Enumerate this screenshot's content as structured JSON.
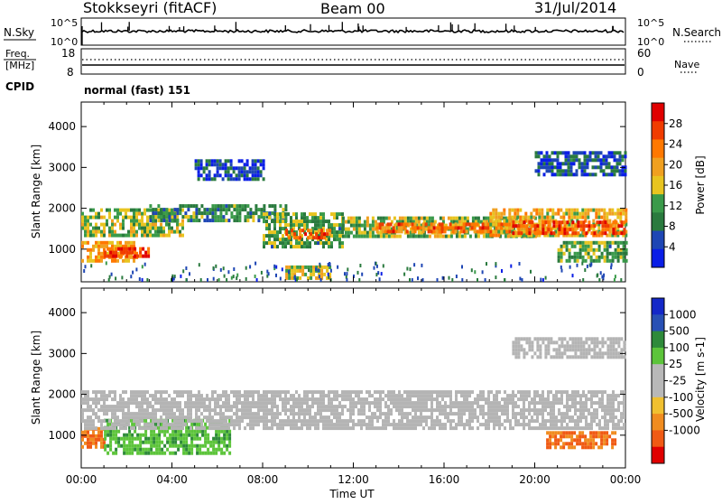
{
  "header": {
    "radar": "Stokkseyri (fitACF)",
    "beam": "Beam 00",
    "date": "31/Jul/2014"
  },
  "noise_panel": {
    "left_label": "N.Sky",
    "right_label": "N.Search",
    "y_ticks": [
      "10^5",
      "10^0"
    ]
  },
  "freq_panel": {
    "left_label_1": "Freq.",
    "left_label_2": "[MHz]",
    "left_ticks": [
      "18",
      "8"
    ],
    "right_label": "Nave",
    "right_ticks": [
      "60",
      "0"
    ]
  },
  "cpid": {
    "label": "CPID",
    "value": "normal (fast) 151"
  },
  "colors": {
    "power_scale": [
      "#0a1ee6",
      "#1e46b4",
      "#2a7a3e",
      "#3a9a4a",
      "#e8c420",
      "#f0a020",
      "#ff7800",
      "#f03c00",
      "#e00000"
    ],
    "velocity_scale": [
      "#1428c8",
      "#2850b4",
      "#2e8a3a",
      "#5cc43a",
      "#b8b8b8",
      "#b8b8b8",
      "#f0c030",
      "#f08c20",
      "#f05a14",
      "#e00000"
    ],
    "ground_scatter": "#b4b4b4"
  },
  "chart_data": [
    {
      "type": "heatmap",
      "name": "power",
      "ylabel": "Slant Range [km]",
      "y_ticks": [
        "1000",
        "2000",
        "3000",
        "4000"
      ],
      "ylim": [
        200,
        4600
      ],
      "xlim_hours": [
        0,
        24
      ],
      "colorbar_label": "Power [dB]",
      "colorbar_ticks": [
        "4",
        "8",
        "12",
        "16",
        "20",
        "24",
        "28"
      ],
      "colorbar_range": [
        0,
        32
      ],
      "regions": [
        {
          "t0": 0.0,
          "t1": 2.4,
          "r0": 700,
          "r1": 1200,
          "db": 20
        },
        {
          "t0": 1.0,
          "t1": 3.0,
          "r0": 800,
          "r1": 1050,
          "db": 26
        },
        {
          "t0": 0.0,
          "t1": 4.5,
          "r0": 1300,
          "r1": 2000,
          "db": 14
        },
        {
          "t0": 3.0,
          "t1": 9.0,
          "r0": 1700,
          "r1": 2100,
          "db": 10
        },
        {
          "t0": 8.0,
          "t1": 11.5,
          "r0": 1100,
          "r1": 1900,
          "db": 12
        },
        {
          "t0": 9.0,
          "t1": 11.0,
          "r0": 1250,
          "r1": 1500,
          "db": 24
        },
        {
          "t0": 9.0,
          "t1": 11.0,
          "r0": 300,
          "r1": 600,
          "db": 16
        },
        {
          "t0": 11.5,
          "t1": 20.0,
          "r0": 1300,
          "r1": 1800,
          "db": 14
        },
        {
          "t0": 13.0,
          "t1": 19.0,
          "r0": 1400,
          "r1": 1650,
          "db": 24
        },
        {
          "t0": 18.0,
          "t1": 24.0,
          "r0": 1300,
          "r1": 2000,
          "db": 18
        },
        {
          "t0": 19.0,
          "t1": 24.0,
          "r0": 1400,
          "r1": 1700,
          "db": 26
        },
        {
          "t0": 20.0,
          "t1": 24.0,
          "r0": 2800,
          "r1": 3400,
          "db": 6
        },
        {
          "t0": 21.0,
          "t1": 24.0,
          "r0": 700,
          "r1": 1200,
          "db": 12
        },
        {
          "t0": 5.0,
          "t1": 8.0,
          "r0": 2700,
          "r1": 3200,
          "db": 5
        }
      ]
    },
    {
      "type": "heatmap",
      "name": "velocity",
      "ylabel": "Slant Range [km]",
      "xlabel": "Time UT",
      "x_ticks": [
        "00:00",
        "04:00",
        "08:00",
        "12:00",
        "16:00",
        "20:00",
        "00:00"
      ],
      "y_ticks": [
        "1000",
        "2000",
        "3000",
        "4000"
      ],
      "ylim": [
        200,
        4600
      ],
      "xlim_hours": [
        0,
        24
      ],
      "colorbar_label": "Velocity [m s-1]",
      "colorbar_ticks": [
        "1000",
        "500",
        "100",
        "25",
        "-25",
        "-100",
        "-500",
        "-1000"
      ],
      "regions": [
        {
          "t0": 0.0,
          "t1": 1.0,
          "r0": 700,
          "r1": 1200,
          "cls": "neg"
        },
        {
          "t0": 1.0,
          "t1": 6.5,
          "r0": 600,
          "r1": 1400,
          "cls": "pos"
        },
        {
          "t0": 0.0,
          "t1": 24.0,
          "r0": 1200,
          "r1": 2100,
          "cls": "gs"
        },
        {
          "t0": 20.5,
          "t1": 23.5,
          "r0": 700,
          "r1": 1100,
          "cls": "neg"
        },
        {
          "t0": 19.0,
          "t1": 24.0,
          "r0": 2900,
          "r1": 3400,
          "cls": "gs"
        }
      ]
    }
  ]
}
